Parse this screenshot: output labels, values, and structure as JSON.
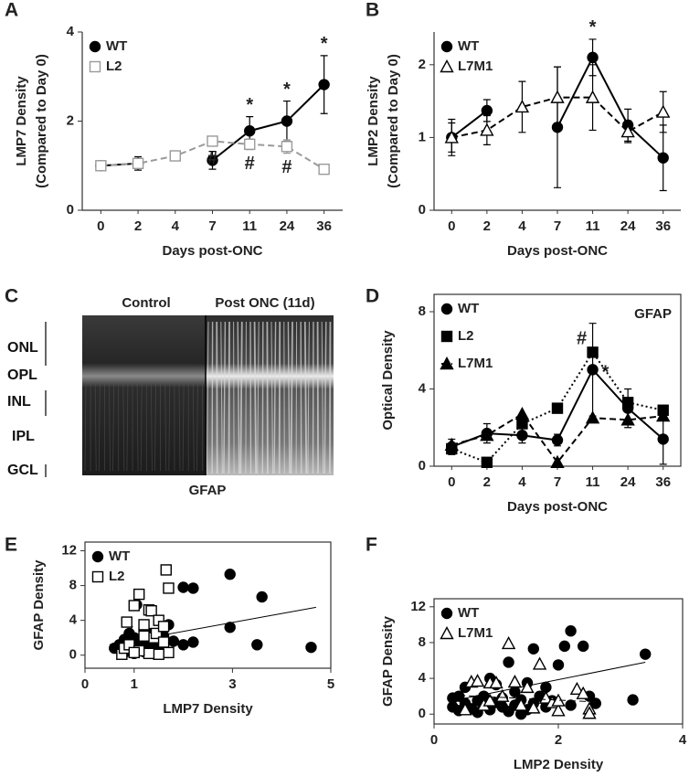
{
  "chart_data": [
    {
      "type": "line",
      "panel": "A",
      "ylabel": [
        "LMP7 Density",
        "(Compared to Day 0)"
      ],
      "xlabel": "Days post-ONC",
      "categories": [
        "0",
        "2",
        "4",
        "7",
        "11",
        "24",
        "36"
      ],
      "ylim": [
        0,
        4
      ],
      "yticks": [
        0,
        2,
        4
      ],
      "legend": "upper left",
      "series": [
        {
          "name": "WT",
          "color": "#000000",
          "marker": "circle",
          "dash": "solid",
          "values": [
            1.0,
            1.05,
            null,
            1.12,
            1.78,
            2.0,
            2.82
          ],
          "errors": [
            0.08,
            0.15,
            null,
            0.2,
            0.32,
            0.45,
            0.65
          ],
          "annotations": [
            null,
            null,
            null,
            null,
            "*",
            "*",
            "*"
          ]
        },
        {
          "name": "L2",
          "color": "#9a9a9a",
          "marker": "square-open",
          "dash": "dashed",
          "values": [
            1.0,
            1.05,
            1.22,
            1.55,
            1.48,
            1.43,
            0.92
          ],
          "errors": [
            0.06,
            0.08,
            0.05,
            0.08,
            0.12,
            0.15,
            0.05
          ],
          "annotations": [
            null,
            null,
            null,
            "#",
            "#",
            "#",
            null
          ]
        }
      ]
    },
    {
      "type": "line",
      "panel": "B",
      "ylabel": [
        "LMP2 Density",
        "(Compared to Day 0)"
      ],
      "xlabel": "Days post-ONC",
      "categories": [
        "0",
        "2",
        "4",
        "7",
        "11",
        "24",
        "36"
      ],
      "ylim": [
        0,
        2.45
      ],
      "yticks": [
        0,
        1,
        2
      ],
      "legend": "upper left",
      "series": [
        {
          "name": "WT",
          "color": "#000000",
          "marker": "circle",
          "dash": "solid",
          "values": [
            1.0,
            1.37,
            null,
            1.14,
            2.1,
            1.17,
            0.72
          ],
          "errors": [
            0.25,
            0.15,
            null,
            0.83,
            0.25,
            0.22,
            0.45
          ],
          "annotations": [
            null,
            null,
            null,
            null,
            "*",
            null,
            null
          ]
        },
        {
          "name": "L7M1",
          "color": "#000000",
          "marker": "triangle-open",
          "dash": "dashed",
          "values": [
            1.0,
            1.1,
            1.42,
            1.55,
            1.55,
            1.08,
            1.35
          ],
          "errors": [
            0.2,
            0.2,
            0.35,
            0.42,
            0.45,
            0.15,
            0.28
          ]
        }
      ]
    },
    {
      "type": "line",
      "panel": "D",
      "ylabel": [
        "Optical Density"
      ],
      "xlabel": "Days post-ONC",
      "annotation": "GFAP",
      "frame": true,
      "categories": [
        "0",
        "2",
        "4",
        "7",
        "11",
        "24",
        "36"
      ],
      "ylim": [
        0,
        8.9
      ],
      "yticks": [
        0,
        4,
        8
      ],
      "legend": "upper left",
      "series": [
        {
          "name": "WT",
          "color": "#000000",
          "marker": "circle",
          "dash": "solid",
          "values": [
            1.0,
            1.7,
            1.6,
            1.35,
            5.0,
            3.0,
            1.4
          ],
          "errors": [
            0.4,
            0.5,
            0.4,
            0.3,
            2.4,
            1.0,
            1.3
          ],
          "annotations": [
            null,
            null,
            null,
            null,
            "*",
            null,
            null
          ]
        },
        {
          "name": "L2",
          "color": "#000000",
          "marker": "square",
          "dash": "dotted",
          "values": [
            0.9,
            0.2,
            2.2,
            3.0,
            5.9,
            3.3,
            2.9
          ],
          "annotations": [
            null,
            null,
            null,
            null,
            "#",
            null,
            null
          ]
        },
        {
          "name": "L7M1",
          "color": "#000000",
          "marker": "triangle",
          "dash": "dashed",
          "values": [
            1.1,
            1.6,
            2.7,
            0.2,
            2.5,
            2.4,
            2.6
          ]
        }
      ]
    },
    {
      "type": "scatter",
      "panel": "E",
      "ylabel": [
        "GFAP Density"
      ],
      "xlabel": "LMP7 Density",
      "frame": true,
      "xlim": [
        0,
        5
      ],
      "xticks": [
        0,
        1,
        3,
        5
      ],
      "ylim": [
        -1.5,
        13
      ],
      "yticks": [
        0,
        4,
        8,
        12
      ],
      "legend": "upper left",
      "series": [
        {
          "name": "WT",
          "color": "#000000",
          "marker": "circle",
          "dash": "solid",
          "x": [
            0.6,
            0.7,
            0.8,
            0.8,
            0.9,
            0.9,
            1.0,
            1.0,
            1.0,
            1.1,
            1.1,
            1.2,
            1.2,
            1.3,
            1.3,
            1.4,
            1.4,
            1.5,
            1.6,
            1.6,
            1.7,
            1.8,
            2.0,
            2.2,
            2.2,
            2.0,
            2.95,
            2.95,
            3.5,
            3.6,
            4.6,
            1.2,
            0.9,
            1.5,
            1.05
          ],
          "y": [
            0.8,
            1.2,
            1.8,
            0.3,
            0.5,
            1.5,
            1.0,
            2.0,
            0.2,
            0.8,
            1.6,
            1.2,
            0.4,
            2.5,
            1.0,
            1.8,
            0.6,
            1.4,
            2.2,
            0.9,
            3.5,
            1.6,
            7.8,
            7.7,
            1.5,
            1.2,
            9.3,
            3.2,
            1.2,
            6.7,
            0.9,
            3.0,
            2.5,
            0.2,
            5.8
          ],
          "trend": {
            "x": [
              0.5,
              4.7
            ],
            "y": [
              1.2,
              5.5
            ]
          }
        },
        {
          "name": "L2",
          "color": "#000000",
          "marker": "square-open",
          "dash": "dashed",
          "x": [
            0.75,
            0.8,
            0.9,
            1.0,
            1.1,
            1.2,
            1.3,
            1.35,
            1.4,
            1.45,
            1.5,
            1.6,
            1.6,
            1.65,
            1.7,
            1.7,
            1.5,
            1.3,
            1.2,
            1.1,
            1.0,
            0.85
          ],
          "y": [
            0.1,
            0.8,
            1.2,
            5.7,
            7.0,
            3.5,
            5.2,
            5.1,
            2.0,
            2.5,
            4.0,
            3.3,
            1.5,
            9.8,
            7.7,
            0.3,
            0.1,
            0.2,
            2.2,
            0.5,
            0.3,
            3.8
          ],
          "trend": {
            "x": [
              0.8,
              1.0
            ],
            "y": [
              1.7,
              3.6
            ]
          }
        }
      ]
    },
    {
      "type": "scatter",
      "panel": "F",
      "ylabel": [
        "GFAP Density"
      ],
      "xlabel": "LMP2 Density",
      "frame": true,
      "xlim": [
        0,
        4
      ],
      "xticks": [
        0,
        2,
        4
      ],
      "ylim": [
        -1.1,
        12.9
      ],
      "yticks": [
        0,
        4,
        8,
        12
      ],
      "legend": "upper left",
      "series": [
        {
          "name": "WT",
          "color": "#000000",
          "marker": "circle",
          "dash": "solid",
          "x": [
            0.3,
            0.3,
            0.4,
            0.5,
            0.5,
            0.6,
            0.7,
            0.7,
            0.8,
            0.8,
            0.9,
            1.0,
            1.0,
            1.1,
            1.1,
            1.2,
            1.2,
            1.3,
            1.3,
            1.4,
            1.5,
            1.5,
            1.6,
            1.6,
            1.7,
            1.8,
            1.8,
            1.9,
            2.0,
            2.1,
            2.2,
            2.2,
            2.4,
            2.5,
            2.6,
            3.2,
            3.4,
            0.4,
            1.4,
            0.9
          ],
          "y": [
            0.8,
            1.8,
            0.4,
            3.0,
            1.2,
            0.6,
            1.5,
            0.2,
            1.0,
            2.0,
            0.5,
            1.3,
            3.3,
            0.8,
            1.8,
            0.3,
            5.8,
            1.0,
            2.5,
            1.6,
            0.5,
            3.5,
            7.3,
            1.2,
            2.0,
            0.8,
            3.0,
            1.5,
            5.5,
            7.6,
            9.3,
            1.0,
            7.6,
            2.0,
            1.2,
            1.6,
            6.7,
            2.0,
            0.0,
            4.0
          ],
          "trend": {
            "x": [
              0.3,
              3.4
            ],
            "y": [
              1.5,
              5.8
            ]
          }
        },
        {
          "name": "L7M1",
          "color": "#000000",
          "marker": "triangle-open",
          "dash": "dashed",
          "x": [
            0.5,
            0.6,
            0.7,
            0.8,
            0.9,
            1.0,
            1.1,
            1.2,
            1.3,
            1.4,
            1.5,
            1.6,
            1.7,
            1.8,
            1.9,
            2.0,
            2.0,
            2.3,
            2.4,
            2.5,
            2.5,
            0.9
          ],
          "y": [
            0.5,
            3.6,
            3.7,
            1.0,
            3.5,
            3.5,
            2.0,
            7.9,
            3.6,
            1.0,
            3.0,
            0.7,
            5.6,
            1.8,
            1.3,
            0.4,
            1.5,
            2.8,
            2.3,
            0.6,
            0.1,
            1.5
          ],
          "trend": {
            "x": [
              0.4,
              2.5
            ],
            "y": [
              2.1,
              1.4
            ]
          }
        }
      ]
    }
  ],
  "panel_c": {
    "panel": "C",
    "columns": [
      "Control",
      "Post ONC (11d)"
    ],
    "layers": [
      "ONL",
      "OPL",
      "INL",
      "IPL",
      "GCL"
    ],
    "caption": "GFAP"
  }
}
